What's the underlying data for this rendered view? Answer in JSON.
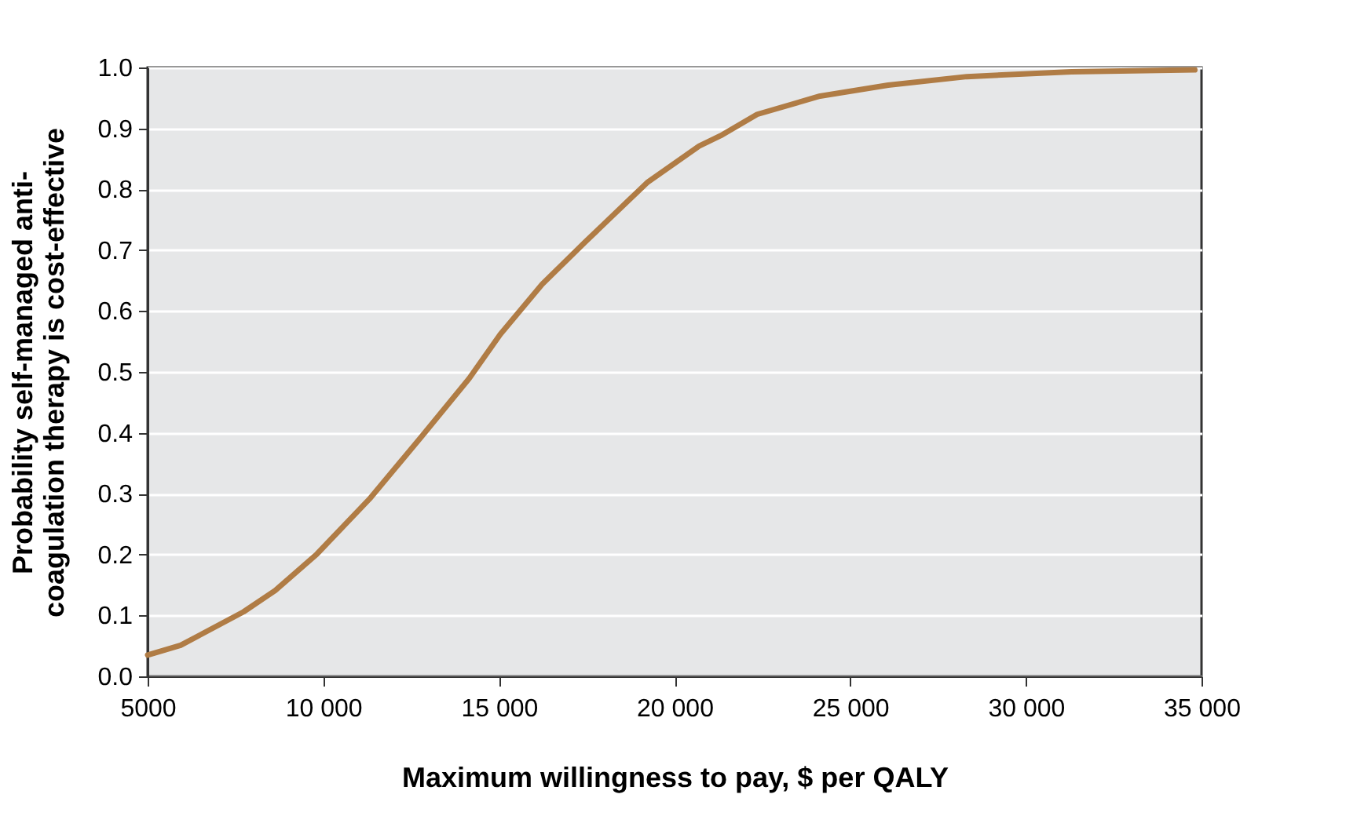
{
  "chart_data": {
    "type": "line",
    "xlabel": "Maximum willingness to pay, $ per QALY",
    "ylabel": "Probability self-managed anti-\ncoagulation therapy is cost-effective",
    "x": [
      5000,
      5940,
      7730,
      8630,
      9820,
      11310,
      12800,
      14150,
      15040,
      16230,
      17430,
      19220,
      20700,
      21310,
      22350,
      24140,
      26080,
      28320,
      31300,
      34810
    ],
    "series": [
      {
        "color": "#b07c45",
        "values": [
          0.035,
          0.051,
          0.106,
          0.141,
          0.201,
          0.291,
          0.394,
          0.489,
          0.562,
          0.644,
          0.712,
          0.811,
          0.871,
          0.888,
          0.923,
          0.953,
          0.971,
          0.985,
          0.993,
          0.996
        ]
      }
    ],
    "xlim": [
      5000,
      35000
    ],
    "xticks": [
      5000,
      {
        "value": 10000,
        "label": "10 000"
      },
      {
        "value": 15000,
        "label": "15 000"
      },
      {
        "value": 20000,
        "label": "20 000"
      },
      {
        "value": 25000,
        "label": "25 000"
      },
      {
        "value": 30000,
        "label": "30 000"
      },
      {
        "value": 35000,
        "label": "35 000"
      }
    ],
    "ylim": [
      0,
      1
    ],
    "yticks": [
      {
        "value": 0,
        "label": "0.0"
      },
      0.1,
      0.2,
      0.3,
      0.4,
      0.5,
      0.6,
      0.7,
      0.8,
      0.9,
      {
        "value": 1,
        "label": "1.0"
      }
    ],
    "grid": "y",
    "line_style": "solid",
    "marker": "none"
  }
}
